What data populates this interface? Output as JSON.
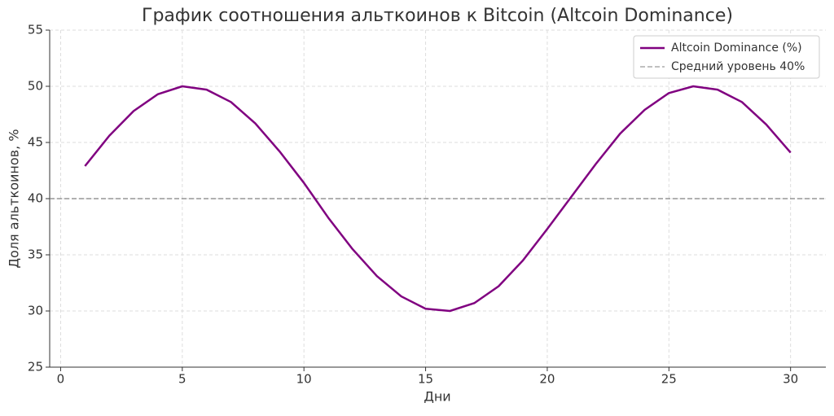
{
  "chart_data": {
    "type": "line",
    "title": "График соотношения альткоинов к Bitcoin (Altcoin Dominance)",
    "x_label": "Дни",
    "y_label": "Доля альткоинов, %",
    "x": [
      1,
      2,
      3,
      4,
      5,
      6,
      7,
      8,
      9,
      10,
      11,
      12,
      13,
      14,
      15,
      16,
      17,
      18,
      19,
      20,
      21,
      22,
      23,
      24,
      25,
      26,
      27,
      28,
      29,
      30
    ],
    "series": [
      {
        "name": "Altcoin Dominance (%)",
        "color": "#800080",
        "values": [
          42.9,
          45.6,
          47.8,
          49.3,
          50.0,
          49.7,
          48.6,
          46.7,
          44.2,
          41.4,
          38.3,
          35.5,
          33.1,
          31.3,
          30.2,
          30.0,
          30.7,
          32.2,
          34.5,
          37.3,
          40.2,
          43.1,
          45.8,
          47.9,
          49.4,
          50.0,
          49.7,
          48.6,
          46.6,
          44.1
        ]
      }
    ],
    "reference_line": {
      "name": "Средний уровень 40%",
      "value": 40,
      "color": "#808080"
    },
    "xlim": [
      -0.45,
      31.45
    ],
    "ylim": [
      25,
      55
    ],
    "xticks": [
      0,
      5,
      10,
      15,
      20,
      25,
      30
    ],
    "yticks": [
      25,
      30,
      35,
      40,
      45,
      50,
      55
    ],
    "grid": true,
    "legend": "upper right"
  }
}
